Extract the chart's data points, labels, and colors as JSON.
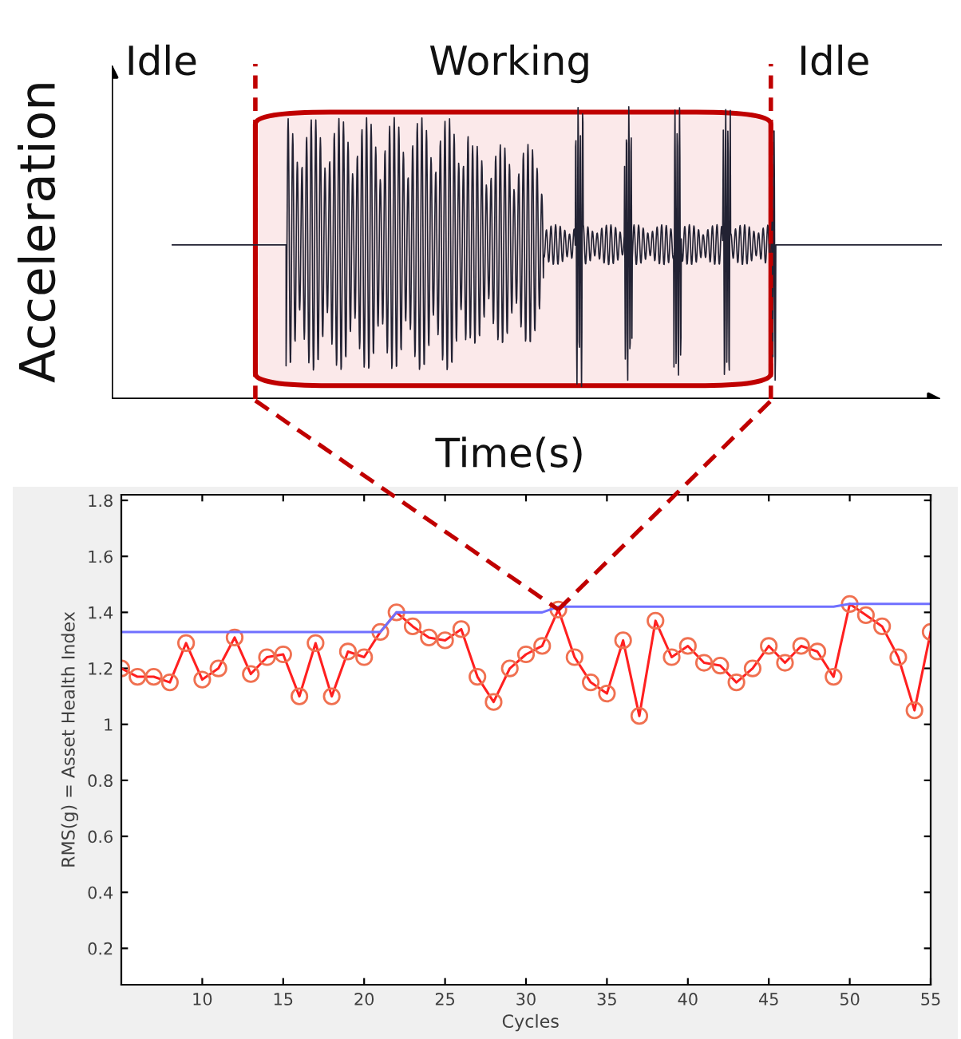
{
  "chart_data": [
    {
      "type": "other",
      "xlabel": "Time(s)",
      "ylabel": "Acceleration",
      "annotations": [
        "Idle",
        "Working",
        "Idle"
      ]
    },
    {
      "type": "line",
      "xlabel": "Cycles",
      "ylabel": "RMS(g) = Asset Health Index",
      "xlim": [
        5,
        55
      ],
      "xticks": [
        10,
        15,
        20,
        25,
        30,
        35,
        40,
        45,
        50,
        55
      ],
      "ylim": [
        0.07,
        1.82
      ],
      "yticks": [
        0.2,
        0.4,
        0.6,
        0.8,
        1,
        1.2,
        1.4,
        1.6,
        1.8
      ],
      "grid": false,
      "series": [
        {
          "color": "#ff2020",
          "marker": "circle",
          "x": [
            5,
            6,
            7,
            8,
            9,
            10,
            11,
            12,
            13,
            14,
            15,
            16,
            17,
            18,
            19,
            20,
            21,
            22,
            23,
            24,
            25,
            26,
            27,
            28,
            29,
            30,
            31,
            32,
            33,
            34,
            35,
            36,
            37,
            38,
            39,
            40,
            41,
            42,
            43,
            44,
            45,
            46,
            47,
            48,
            49,
            50,
            51,
            52,
            53,
            54,
            55
          ],
          "values": [
            1.2,
            1.17,
            1.17,
            1.15,
            1.29,
            1.16,
            1.2,
            1.31,
            1.18,
            1.24,
            1.25,
            1.1,
            1.29,
            1.1,
            1.26,
            1.24,
            1.33,
            1.4,
            1.35,
            1.31,
            1.3,
            1.34,
            1.17,
            1.08,
            1.2,
            1.25,
            1.28,
            1.41,
            1.24,
            1.15,
            1.11,
            1.3,
            1.03,
            1.37,
            1.24,
            1.28,
            1.22,
            1.21,
            1.15,
            1.2,
            1.28,
            1.22,
            1.28,
            1.26,
            1.17,
            1.43,
            1.39,
            1.35,
            1.24,
            1.05,
            1.33
          ]
        },
        {
          "color": "#7070ff",
          "marker": "none",
          "x": [
            5,
            21,
            22,
            31,
            32,
            49,
            50,
            55
          ],
          "values": [
            1.33,
            1.33,
            1.4,
            1.4,
            1.42,
            1.42,
            1.43,
            1.43
          ]
        }
      ]
    }
  ]
}
